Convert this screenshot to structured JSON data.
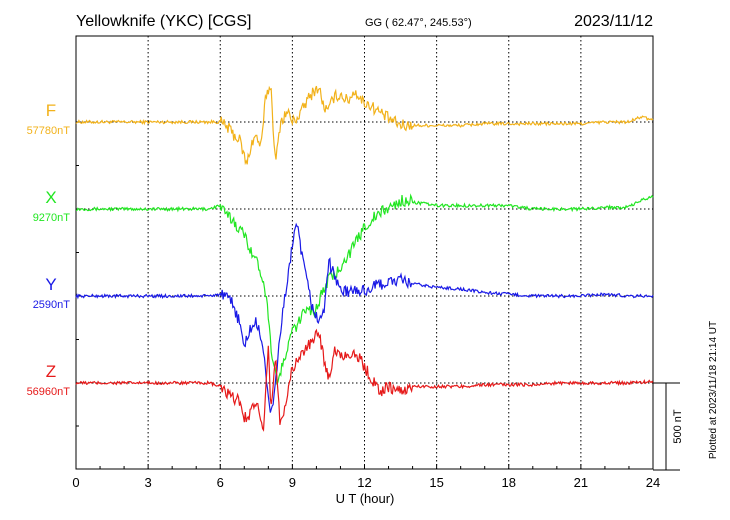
{
  "header": {
    "station": "Yellowknife (YKC)  [CGS]",
    "coords": "GG ( 62.47°, 245.53°)",
    "date": "2023/11/12"
  },
  "side_note": "Plotted at 2023/11/18 21:14 UT",
  "chart_data": {
    "type": "line",
    "xlabel": "U T (hour)",
    "xlim": [
      0,
      24
    ],
    "x_ticks": [
      "0",
      "3",
      "6",
      "9",
      "12",
      "15",
      "18",
      "21",
      "24"
    ],
    "scale_bar_label": "500 nT",
    "scale_bar_nT": 500,
    "series": [
      {
        "name": "F",
        "baseline_label": "57780nT",
        "baseline_nT": 57780,
        "color": "#f2b21b",
        "x": [
          0,
          5.5,
          6.0,
          6.3,
          6.6,
          6.8,
          7.0,
          7.1,
          7.3,
          7.5,
          7.7,
          7.9,
          8.0,
          8.1,
          8.3,
          8.5,
          8.8,
          9.0,
          9.3,
          9.6,
          9.9,
          10.1,
          10.3,
          10.5,
          10.7,
          11.0,
          11.3,
          11.6,
          11.9,
          12.2,
          12.6,
          13.0,
          13.5,
          14.0,
          15.0,
          16.0,
          17.0,
          18.0,
          19.0,
          20.0,
          21.0,
          22.0,
          23.0,
          23.5,
          24.0
        ],
        "y": [
          0,
          0,
          0,
          -30,
          -80,
          -100,
          -200,
          -250,
          -120,
          -80,
          -150,
          160,
          180,
          220,
          -250,
          0,
          60,
          0,
          40,
          120,
          180,
          200,
          90,
          60,
          140,
          160,
          120,
          180,
          120,
          100,
          60,
          20,
          -20,
          -20,
          -20,
          -20,
          -10,
          -10,
          -10,
          -10,
          -10,
          0,
          0,
          30,
          10
        ]
      },
      {
        "name": "X",
        "baseline_label": "9270nT",
        "baseline_nT": 9270,
        "color": "#22e622",
        "x": [
          0,
          5.5,
          6.0,
          6.2,
          6.5,
          7.0,
          7.5,
          7.8,
          8.0,
          8.1,
          8.2,
          8.3,
          8.4,
          8.6,
          8.8,
          9.0,
          9.3,
          9.6,
          9.9,
          10.2,
          10.5,
          10.8,
          11.1,
          11.4,
          11.7,
          12.0,
          12.4,
          12.8,
          13.2,
          13.6,
          14.0,
          15.0,
          16.0,
          17.0,
          18.0,
          19.0,
          20.0,
          21.0,
          22.0,
          23.0,
          23.5,
          24.0
        ],
        "y": [
          0,
          0,
          20,
          -30,
          -60,
          -150,
          -300,
          -400,
          -600,
          -800,
          -850,
          -950,
          -1000,
          -900,
          -800,
          -700,
          -650,
          -550,
          -600,
          -500,
          -400,
          -380,
          -300,
          -250,
          -180,
          -100,
          -50,
          -10,
          20,
          50,
          40,
          20,
          20,
          20,
          20,
          0,
          0,
          0,
          10,
          10,
          50,
          70
        ]
      },
      {
        "name": "Y",
        "baseline_label": "2590nT",
        "baseline_nT": 2590,
        "color": "#1a1ae6",
        "x": [
          0,
          5.5,
          6.0,
          6.5,
          6.8,
          7.0,
          7.2,
          7.5,
          7.8,
          8.0,
          8.1,
          8.3,
          8.5,
          8.8,
          9.0,
          9.2,
          9.5,
          9.8,
          10.1,
          10.3,
          10.5,
          10.8,
          11.1,
          11.5,
          12.0,
          12.5,
          13.0,
          13.5,
          14.0,
          15.0,
          16.0,
          17.0,
          18.0,
          19.0,
          20.0,
          21.0,
          22.0,
          23.0,
          24.0
        ],
        "y": [
          0,
          0,
          10,
          -40,
          -150,
          -300,
          -200,
          -150,
          -300,
          -600,
          -700,
          -500,
          -200,
          100,
          300,
          400,
          150,
          -50,
          -150,
          -100,
          200,
          100,
          20,
          30,
          30,
          60,
          80,
          90,
          70,
          50,
          40,
          20,
          10,
          0,
          0,
          0,
          10,
          0,
          0
        ]
      },
      {
        "name": "Z",
        "baseline_label": "56960nT",
        "baseline_nT": 56960,
        "color": "#e61a1a",
        "x": [
          0,
          5.5,
          6.0,
          6.4,
          6.8,
          7.0,
          7.2,
          7.5,
          7.8,
          8.0,
          8.1,
          8.3,
          8.5,
          8.8,
          9.0,
          9.3,
          9.6,
          9.9,
          10.1,
          10.3,
          10.5,
          10.8,
          11.1,
          11.5,
          11.9,
          12.3,
          12.7,
          13.0,
          13.5,
          14.0,
          15.0,
          16.0,
          17.0,
          18.0,
          19.0,
          20.0,
          21.0,
          22.0,
          23.0,
          24.0
        ],
        "y": [
          0,
          0,
          -20,
          -80,
          -100,
          -200,
          -180,
          -100,
          -300,
          200,
          -150,
          150,
          -250,
          -50,
          80,
          150,
          200,
          250,
          300,
          150,
          30,
          200,
          150,
          180,
          120,
          20,
          -50,
          -20,
          -50,
          -20,
          -20,
          -20,
          -10,
          -10,
          -10,
          0,
          0,
          0,
          0,
          10
        ]
      }
    ]
  }
}
